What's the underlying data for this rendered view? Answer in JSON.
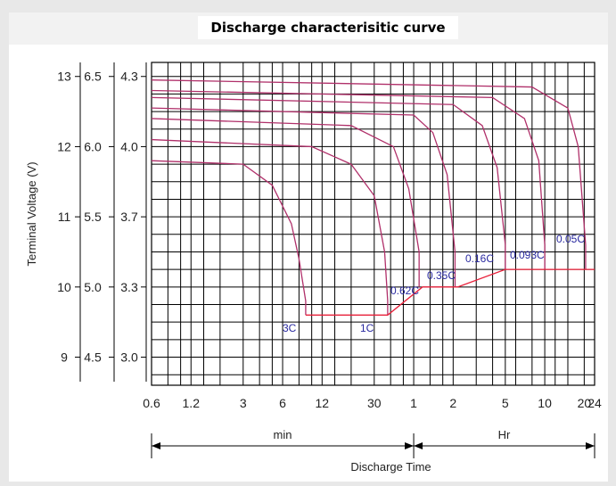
{
  "chart_data": {
    "type": "line",
    "title": "Discharge characterisitic curve",
    "xlabel": "Discharge Time",
    "ylabel": "Terminal Voltage  (V)",
    "x_scale": "log",
    "x_ticks_min": [
      0.6,
      1.2,
      3,
      6,
      12,
      30
    ],
    "x_ticks_hr": [
      1,
      2,
      5,
      10,
      20,
      24
    ],
    "x_tick_labels": [
      "0.6",
      "1.2",
      "3",
      "6",
      "12",
      "30",
      "1",
      "2",
      "5",
      "10",
      "20",
      "24"
    ],
    "x_segments": {
      "min_label": "min",
      "hr_label": "Hr"
    },
    "y_axes": [
      {
        "ticks": [
          13,
          12,
          11,
          10,
          9
        ],
        "labels": [
          "13",
          "12",
          "11",
          "10",
          "9"
        ]
      },
      {
        "ticks": [
          6.5,
          6.0,
          5.5,
          5.0,
          4.5
        ],
        "labels": [
          "6.5",
          "6.0",
          "5.5",
          "5.0",
          "4.5"
        ]
      },
      {
        "ticks": [
          4.3,
          4.0,
          3.7,
          3.3,
          3.0
        ],
        "labels": [
          "4.3",
          "4.0",
          "3.7",
          "3.3",
          "3.0"
        ]
      }
    ],
    "ylim": [
      8.6,
      13.2
    ],
    "grid": true,
    "series": [
      {
        "name": "3C",
        "points": [
          [
            0.6,
            11.8
          ],
          [
            3,
            11.75
          ],
          [
            5,
            11.45
          ],
          [
            7,
            10.9
          ],
          [
            8,
            10.4
          ],
          [
            9,
            9.8
          ]
        ],
        "end_voltage": 9.6
      },
      {
        "name": "1C",
        "points": [
          [
            0.6,
            12.1
          ],
          [
            10,
            12.0
          ],
          [
            20,
            11.75
          ],
          [
            30,
            11.3
          ],
          [
            36,
            10.5
          ],
          [
            38,
            9.8
          ]
        ],
        "end_voltage": 9.6
      },
      {
        "name": "0.62C",
        "points": [
          [
            0.6,
            12.4
          ],
          [
            20,
            12.3
          ],
          [
            42,
            12.0
          ],
          [
            55,
            11.4
          ],
          [
            66,
            10.5
          ]
        ],
        "end_voltage": 10.0
      },
      {
        "name": "0.35C",
        "points": [
          [
            0.6,
            12.55
          ],
          [
            60,
            12.45
          ],
          [
            84,
            12.2
          ],
          [
            108,
            11.6
          ],
          [
            124,
            10.5
          ]
        ],
        "end_voltage": 10.0
      },
      {
        "name": "0.16C",
        "points": [
          [
            0.6,
            12.7
          ],
          [
            120,
            12.6
          ],
          [
            200,
            12.3
          ],
          [
            260,
            11.7
          ],
          [
            300,
            10.6
          ]
        ],
        "end_voltage": 10.25
      },
      {
        "name": "0.093C",
        "points": [
          [
            0.6,
            12.8
          ],
          [
            240,
            12.7
          ],
          [
            420,
            12.4
          ],
          [
            540,
            11.8
          ],
          [
            600,
            10.6
          ]
        ],
        "end_voltage": 10.25
      },
      {
        "name": "0.05C",
        "points": [
          [
            0.6,
            12.95
          ],
          [
            480,
            12.85
          ],
          [
            900,
            12.55
          ],
          [
            1080,
            12.0
          ],
          [
            1230,
            10.6
          ]
        ],
        "end_voltage": 10.25
      }
    ],
    "end_voltage_line": [
      [
        9,
        9.6
      ],
      [
        38,
        9.6
      ],
      [
        70,
        10.0
      ],
      [
        130,
        10.0
      ],
      [
        300,
        10.25
      ],
      [
        1440,
        10.25
      ]
    ]
  },
  "colors": {
    "curve": "#b0306a",
    "end_line": "#e8203a",
    "grid": "#000000",
    "label": "#2a2aa0"
  }
}
